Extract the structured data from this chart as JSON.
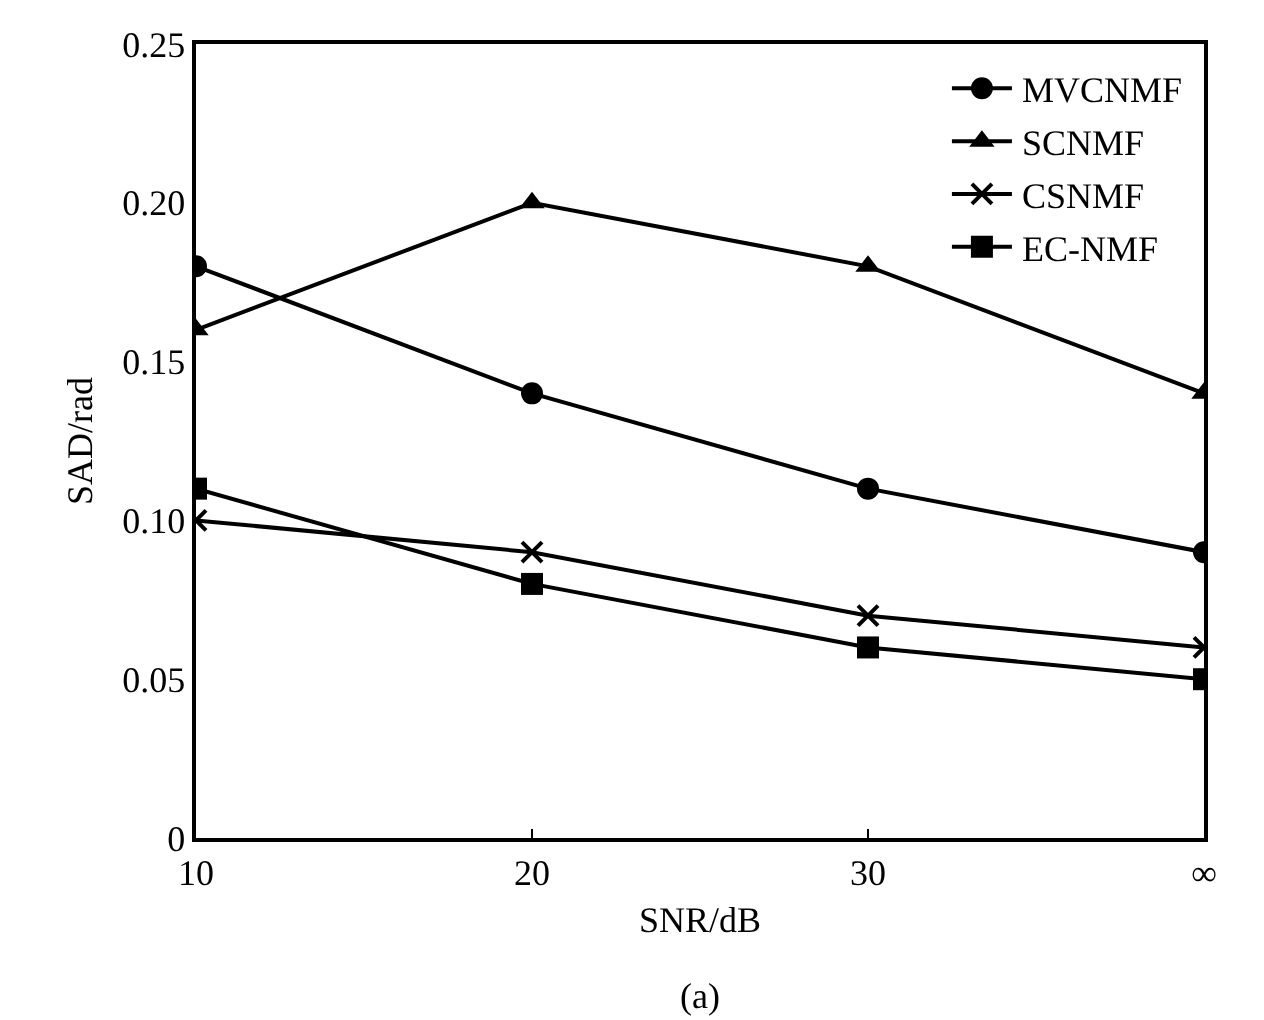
{
  "chart_data": {
    "type": "line",
    "xlabel": "SNR/dB",
    "ylabel": "SAD/rad",
    "categories": [
      "10",
      "20",
      "30",
      "∞"
    ],
    "series": [
      {
        "name": "MVCNMF",
        "color": "#000000",
        "marker": "circle",
        "values": [
          0.18,
          0.14,
          0.11,
          0.09
        ]
      },
      {
        "name": "SCNMF",
        "color": "#000000",
        "marker": "triangle",
        "values": [
          0.16,
          0.2,
          0.18,
          0.14
        ]
      },
      {
        "name": "CSNMF",
        "color": "#000000",
        "marker": "cross",
        "values": [
          0.1,
          0.09,
          0.07,
          0.06
        ]
      },
      {
        "name": "EC-NMF",
        "color": "#000000",
        "marker": "square",
        "values": [
          0.11,
          0.08,
          0.06,
          0.05
        ]
      }
    ],
    "ylim": [
      0,
      0.25
    ],
    "yticks": [
      {
        "value": 0,
        "label": "0"
      },
      {
        "value": 0.05,
        "label": "0.05"
      },
      {
        "value": 0.1,
        "label": "0.10"
      },
      {
        "value": 0.15,
        "label": "0.15"
      },
      {
        "value": 0.2,
        "label": "0.20"
      },
      {
        "value": 0.25,
        "label": "0.25"
      }
    ],
    "legend": "top right",
    "line_style": "solid",
    "annotations": [
      "(a)"
    ]
  }
}
